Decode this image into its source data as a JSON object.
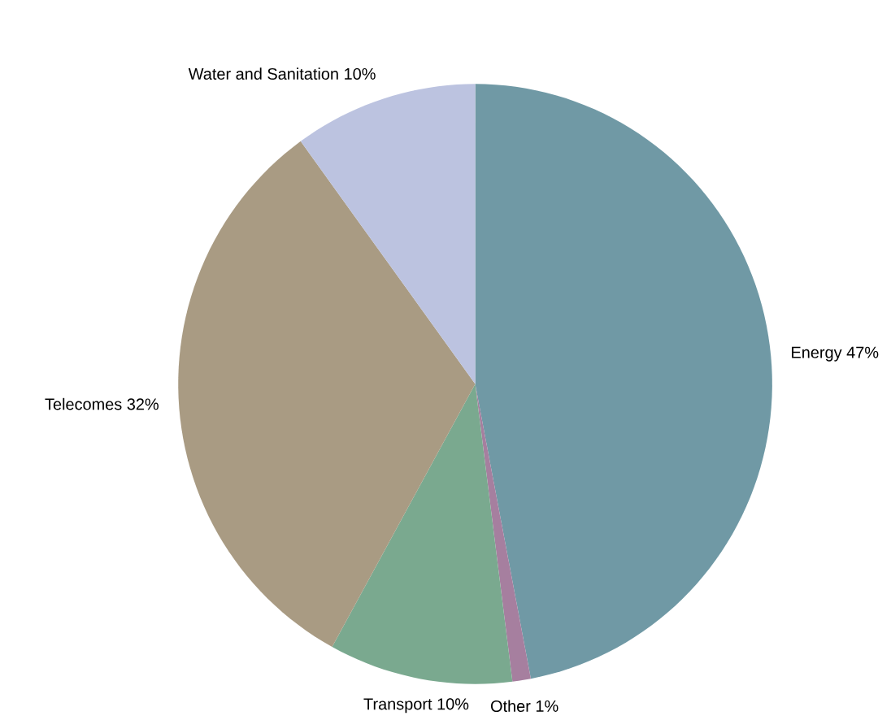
{
  "chart_data": {
    "type": "pie",
    "categories": [
      "Energy",
      "Other",
      "Transport",
      "Telecomes",
      "Water and Sanitation"
    ],
    "values": [
      47,
      1,
      10,
      32,
      10
    ],
    "value_labels": [
      "47%",
      "1%",
      "10%",
      "32%",
      "10%"
    ],
    "colors": [
      "#7099a5",
      "#a67f9f",
      "#7aa98f",
      "#a99b83",
      "#bcc3e0"
    ]
  }
}
